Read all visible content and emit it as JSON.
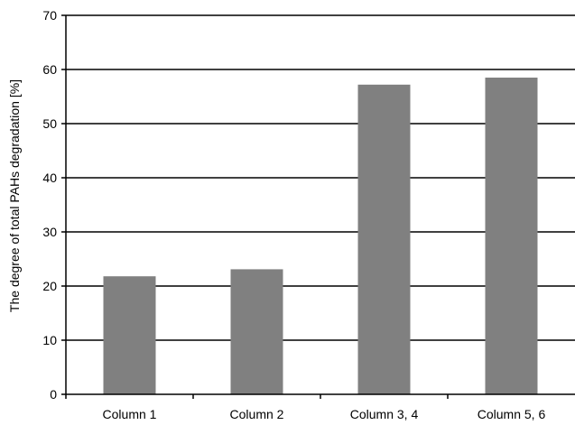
{
  "chart_data": {
    "type": "bar",
    "title": "",
    "xlabel": "",
    "ylabel": "The degree of total PAHs degradation [%]",
    "categories": [
      "Column 1",
      "Column 2",
      "Column 3, 4",
      "Column 5, 6"
    ],
    "values": [
      21.8,
      23.1,
      57.2,
      58.5
    ],
    "ylim": [
      0,
      70
    ],
    "yticks": [
      "0",
      "10",
      "20",
      "30",
      "40",
      "50",
      "60",
      "70"
    ],
    "grid": "horizontal",
    "legend": "none",
    "bar_color": "#808080"
  }
}
